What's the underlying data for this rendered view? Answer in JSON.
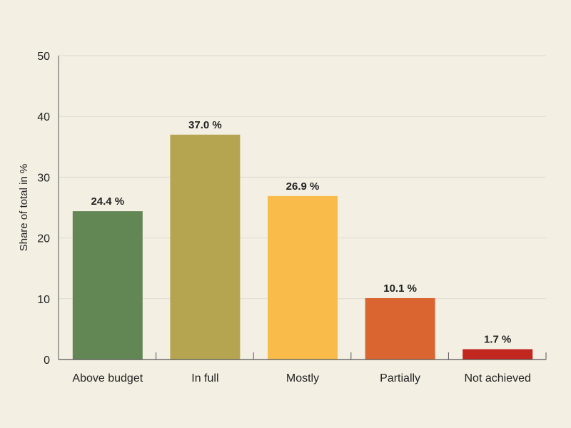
{
  "chart_data": {
    "type": "bar",
    "title": "",
    "xlabel": "",
    "ylabel": "Share of total in %",
    "ylim": [
      0,
      50
    ],
    "yticks": [
      0,
      10,
      20,
      30,
      40,
      50
    ],
    "grid": true,
    "categories": [
      "Above budget",
      "In full",
      "Mostly",
      "Partially",
      "Not achieved"
    ],
    "values": [
      24.4,
      37.0,
      26.9,
      10.1,
      1.7
    ],
    "labels": [
      "24.4 %",
      "37.0 %",
      "26.9 %",
      "10.1 %",
      "1.7 %"
    ],
    "colors": [
      "#628654",
      "#b6a550",
      "#f9bb4a",
      "#da6530",
      "#c1261f"
    ]
  },
  "colors": {
    "background": "#f3efe3",
    "grid": "#dedad0",
    "axis": "#555555"
  }
}
